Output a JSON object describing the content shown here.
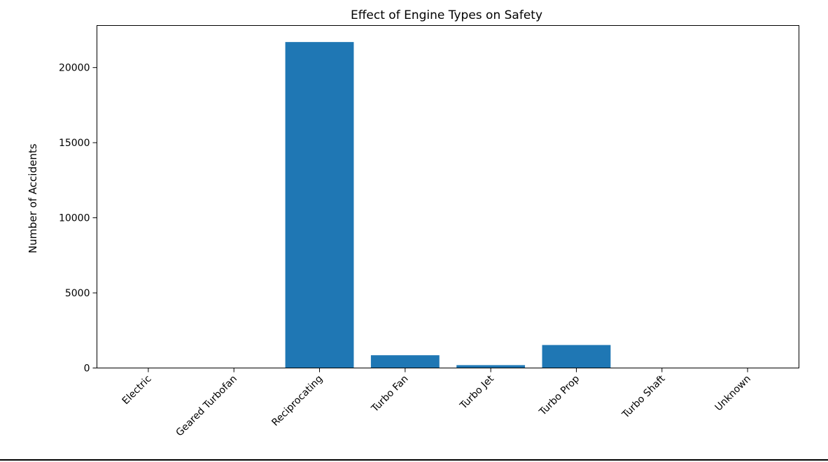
{
  "chart_data": {
    "type": "bar",
    "title": "Effect of Engine Types on Safety",
    "xlabel": "",
    "ylabel": "Number of Accidents",
    "categories": [
      "Electric",
      "Geared Turbofan",
      "Reciprocating",
      "Turbo Fan",
      "Turbo Jet",
      "Turbo Prop",
      "Turbo Shaft",
      "Unknown"
    ],
    "values": [
      2,
      1,
      21700,
      850,
      190,
      1530,
      1,
      3
    ],
    "ylim": [
      0,
      22800
    ],
    "yticks": [
      {
        "value": 0,
        "label": "0"
      },
      {
        "value": 5000,
        "label": "5000"
      },
      {
        "value": 10000,
        "label": "10000"
      },
      {
        "value": 15000,
        "label": "15000"
      },
      {
        "value": 20000,
        "label": "20000"
      }
    ],
    "grid": false,
    "legend": "none",
    "bar_color": "#1f77b4",
    "tick_label_rotation_deg": -45
  }
}
